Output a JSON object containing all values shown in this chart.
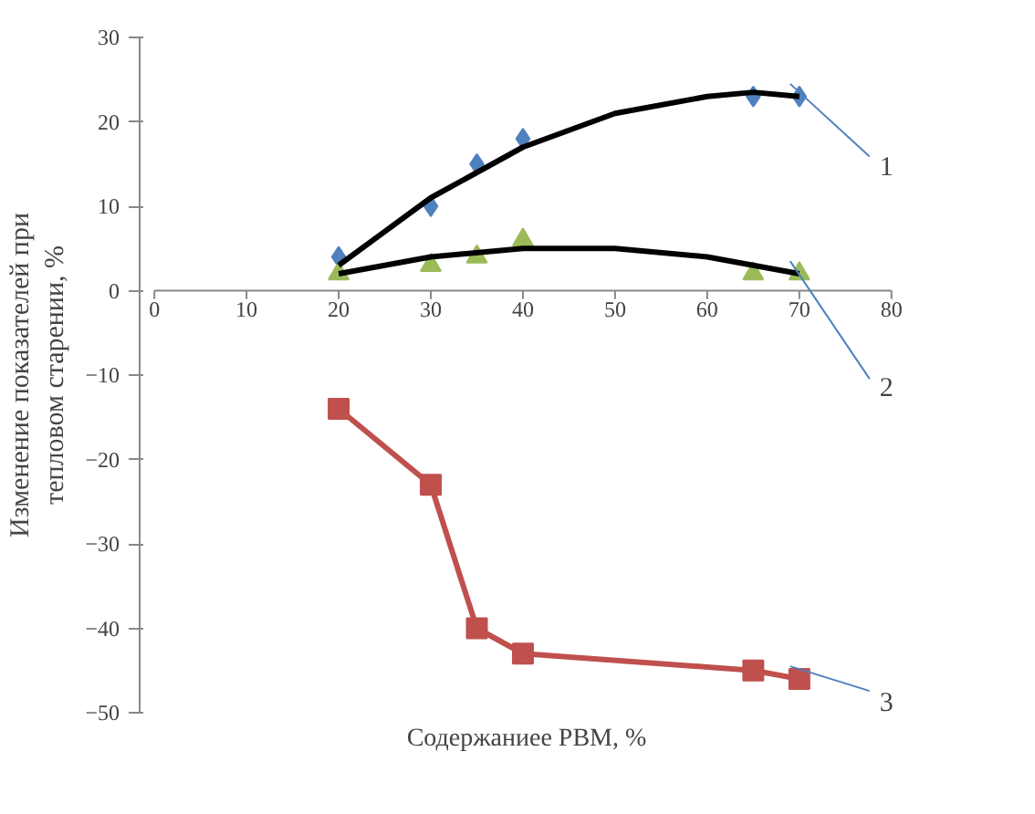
{
  "chart_data": {
    "type": "scatter",
    "xlabel": "Содержаниее РВМ, %",
    "ylabel": "Изменение показателей при\nтепловом старении, %",
    "x": [
      20,
      30,
      35,
      40,
      65,
      70
    ],
    "xlim": [
      0,
      80
    ],
    "xticks": [
      0,
      10,
      20,
      30,
      40,
      50,
      60,
      70,
      80
    ],
    "ylim": [
      -50,
      30
    ],
    "yticks": [
      -50,
      -40,
      -30,
      -20,
      -10,
      0,
      10,
      20,
      30
    ],
    "grid": false,
    "series": [
      {
        "name": "1",
        "marker": "diamond",
        "color": "#4f81bd",
        "values": [
          4,
          10,
          15,
          18,
          23,
          23
        ]
      },
      {
        "name": "2",
        "marker": "triangle",
        "color": "#9bbb59",
        "values": [
          2,
          3,
          4,
          6,
          2,
          2
        ]
      },
      {
        "name": "3",
        "type": "line",
        "marker": "square",
        "color": "#c0504d",
        "values": [
          -14,
          -23,
          -40,
          -43,
          -45,
          -46
        ]
      },
      {
        "type": "line",
        "marker": "none",
        "color": "#000000",
        "x": [
          20,
          30,
          40,
          50,
          60,
          65,
          70
        ],
        "values": [
          3,
          11,
          17,
          21,
          23,
          23.5,
          23
        ]
      },
      {
        "type": "line",
        "marker": "none",
        "color": "#000000",
        "x": [
          20,
          30,
          40,
          50,
          60,
          70
        ],
        "values": [
          2,
          4,
          5,
          5,
          4,
          2
        ]
      }
    ]
  }
}
